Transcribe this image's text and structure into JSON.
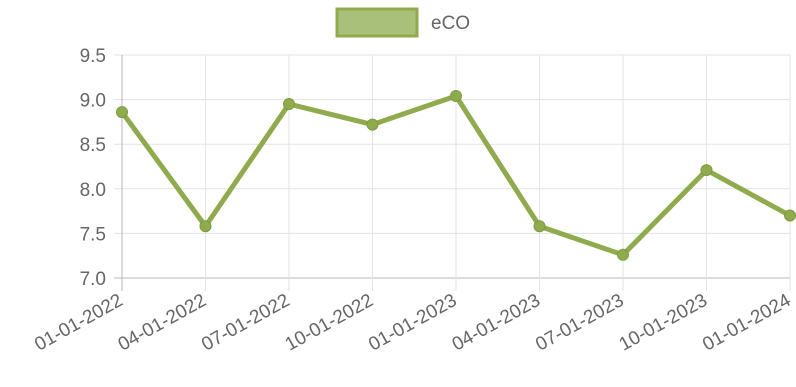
{
  "chart_data": {
    "type": "line",
    "x": [
      "01-01-2022",
      "04-01-2022",
      "07-01-2022",
      "10-01-2022",
      "01-01-2023",
      "04-01-2023",
      "07-01-2023",
      "10-01-2023",
      "01-01-2024"
    ],
    "series": [
      {
        "name": "eCO",
        "values": [
          8.86,
          7.58,
          8.95,
          8.72,
          9.04,
          7.58,
          7.26,
          8.21,
          7.7
        ],
        "color": "#8fab4d"
      }
    ],
    "yticks": [
      "9.5",
      "9.0",
      "8.5",
      "8.0",
      "7.5",
      "7.0"
    ],
    "ylim": [
      7.0,
      9.5
    ],
    "grid": true,
    "legend_position": "top-center",
    "title": "",
    "xlabel": "",
    "ylabel": ""
  }
}
